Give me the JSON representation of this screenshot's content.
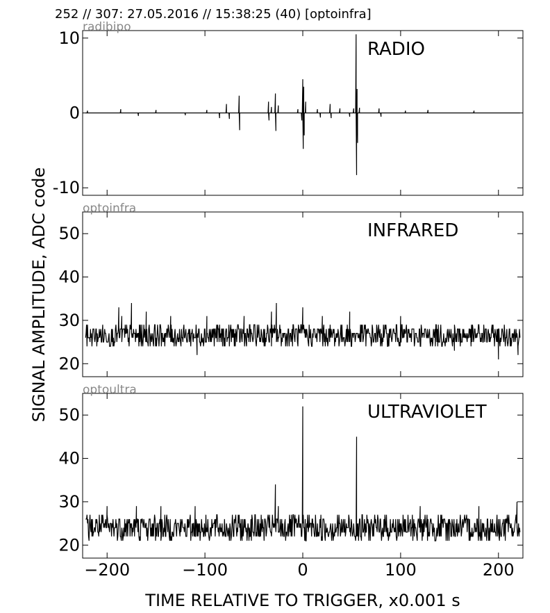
{
  "header": "252 // 307:   27.05.2016 // 15:38:25 (40)  [optoinfra]",
  "ylabel": "SIGNAL AMPLITUDE,  ADC code",
  "xlabel": "TIME RELATIVE TO TRIGGER,   x0.001 s",
  "x_ticks": [
    -200,
    -100,
    0,
    100,
    200
  ],
  "x_tick_labels": [
    "−200",
    "−100",
    "0",
    "100",
    "200"
  ],
  "colors": {
    "trace": "#000000",
    "panel_tag": "#888888",
    "background": "#ffffff"
  },
  "chart_data": [
    {
      "type": "line",
      "panel_tag": "radibipo",
      "title": "RADIO",
      "xlim": [
        -225,
        225
      ],
      "ylim": [
        -11,
        11
      ],
      "y_ticks": [
        -10,
        0,
        10
      ],
      "y_tick_labels": [
        "-10",
        "0",
        "10"
      ],
      "noise": {
        "baseline": 0,
        "low": -0.3,
        "high": 0.3,
        "step": 0.5
      },
      "spikes": [
        {
          "x": -220,
          "y": 0.3
        },
        {
          "x": -186,
          "y": 0.5
        },
        {
          "x": -168,
          "y": -0.4
        },
        {
          "x": -150,
          "y": 0.4
        },
        {
          "x": -120,
          "y": -0.3
        },
        {
          "x": -98,
          "y": 0.4
        },
        {
          "x": -85,
          "y": -0.7
        },
        {
          "x": -78,
          "y": 1.2
        },
        {
          "x": -75,
          "y": -0.8
        },
        {
          "x": -65,
          "y": 2.3
        },
        {
          "x": -64.5,
          "y": -2.3
        },
        {
          "x": -35,
          "y": 1.5
        },
        {
          "x": -34.5,
          "y": -1.0
        },
        {
          "x": -32,
          "y": 0.8
        },
        {
          "x": -28,
          "y": 2.6
        },
        {
          "x": -27.5,
          "y": -2.4
        },
        {
          "x": -25,
          "y": 1.0
        },
        {
          "x": -5,
          "y": 0.5
        },
        {
          "x": -1,
          "y": -1.0
        },
        {
          "x": 0,
          "y": 4.5
        },
        {
          "x": 0.5,
          "y": -4.8
        },
        {
          "x": 1,
          "y": 3.5
        },
        {
          "x": 1.5,
          "y": -3.0
        },
        {
          "x": 3,
          "y": 1.5
        },
        {
          "x": 15,
          "y": 0.5
        },
        {
          "x": 18,
          "y": -0.6
        },
        {
          "x": 28,
          "y": 1.2
        },
        {
          "x": 29,
          "y": -0.7
        },
        {
          "x": 38,
          "y": 0.6
        },
        {
          "x": 48,
          "y": -0.5
        },
        {
          "x": 52,
          "y": 0.6
        },
        {
          "x": 54.5,
          "y": 10.5
        },
        {
          "x": 55,
          "y": -8.3
        },
        {
          "x": 55.5,
          "y": 3.2
        },
        {
          "x": 56,
          "y": -4.0
        },
        {
          "x": 58,
          "y": 0.7
        },
        {
          "x": 78,
          "y": 0.6
        },
        {
          "x": 80,
          "y": -0.5
        },
        {
          "x": 105,
          "y": 0.3
        },
        {
          "x": 128,
          "y": 0.4
        },
        {
          "x": 175,
          "y": 0.3
        }
      ]
    },
    {
      "type": "line",
      "panel_tag": "optoinfra",
      "title": "INFRARED",
      "xlim": [
        -225,
        225
      ],
      "ylim": [
        17,
        55
      ],
      "y_ticks": [
        20,
        30,
        40,
        50
      ],
      "y_tick_labels": [
        "20",
        "30",
        "40",
        "50"
      ],
      "noise": {
        "baseline": 26.5,
        "low": 24,
        "high": 29,
        "step": 0.5
      },
      "spikes": [
        {
          "x": -188,
          "y": 33
        },
        {
          "x": -185,
          "y": 31
        },
        {
          "x": -175,
          "y": 34
        },
        {
          "x": -160,
          "y": 32
        },
        {
          "x": -135,
          "y": 31
        },
        {
          "x": -108,
          "y": 22
        },
        {
          "x": -98,
          "y": 31
        },
        {
          "x": -60,
          "y": 31
        },
        {
          "x": -32,
          "y": 32
        },
        {
          "x": -27,
          "y": 34
        },
        {
          "x": 0,
          "y": 33
        },
        {
          "x": 20,
          "y": 31
        },
        {
          "x": 48,
          "y": 32
        },
        {
          "x": 100,
          "y": 31
        },
        {
          "x": 155,
          "y": 23
        },
        {
          "x": 200,
          "y": 21
        },
        {
          "x": 220,
          "y": 22
        }
      ]
    },
    {
      "type": "line",
      "panel_tag": "optoultra",
      "title": "ULTRAVIOLET",
      "xlim": [
        -225,
        225
      ],
      "ylim": [
        17,
        55
      ],
      "y_ticks": [
        20,
        30,
        40,
        50
      ],
      "y_tick_labels": [
        "20",
        "30",
        "40",
        "50"
      ],
      "noise": {
        "baseline": 24,
        "low": 21,
        "high": 27,
        "step": 0.5
      },
      "spikes": [
        {
          "x": -200,
          "y": 29
        },
        {
          "x": -170,
          "y": 29
        },
        {
          "x": -145,
          "y": 29
        },
        {
          "x": -110,
          "y": 29
        },
        {
          "x": -28,
          "y": 34
        },
        {
          "x": -25,
          "y": 29
        },
        {
          "x": 0,
          "y": 52
        },
        {
          "x": 55,
          "y": 45
        },
        {
          "x": 120,
          "y": 29
        },
        {
          "x": 180,
          "y": 29
        },
        {
          "x": 219,
          "y": 30
        }
      ]
    }
  ]
}
